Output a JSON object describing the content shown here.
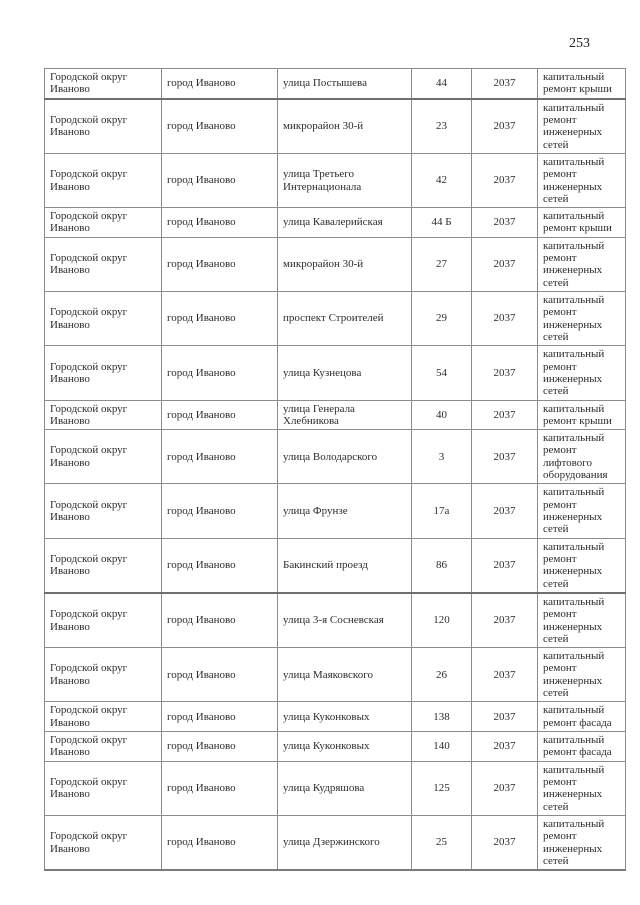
{
  "page": {
    "number": "253"
  },
  "table": {
    "rows": [
      {
        "municipality": "Городской округ Иваново",
        "city": "город Иваново",
        "street": "улица Постышева",
        "house": "44",
        "year": "2037",
        "work": "капитальный ремонт крыши"
      },
      {
        "municipality": "Городской округ Иваново",
        "city": "город Иваново",
        "street": "микрорайон 30-й",
        "house": "23",
        "year": "2037",
        "work": "капитальный ремонт инженерных сетей"
      },
      {
        "municipality": "Городской округ Иваново",
        "city": "город Иваново",
        "street": "улица Третьего Интернационала",
        "house": "42",
        "year": "2037",
        "work": "капитальный ремонт инженерных сетей"
      },
      {
        "municipality": "Городской округ Иваново",
        "city": "город Иваново",
        "street": "улица Кавалерийская",
        "house": "44 Б",
        "year": "2037",
        "work": "капитальный ремонт крыши"
      },
      {
        "municipality": "Городской округ Иваново",
        "city": "город Иваново",
        "street": "микрорайон 30-й",
        "house": "27",
        "year": "2037",
        "work": "капитальный ремонт инженерных сетей"
      },
      {
        "municipality": "Городской округ Иваново",
        "city": "город Иваново",
        "street": "проспект Строителей",
        "house": "29",
        "year": "2037",
        "work": "капитальный ремонт инженерных сетей"
      },
      {
        "municipality": "Городской округ Иваново",
        "city": "город Иваново",
        "street": "улица Кузнецова",
        "house": "54",
        "year": "2037",
        "work": "капитальный ремонт инженерных сетей"
      },
      {
        "municipality": "Городской округ Иваново",
        "city": "город Иваново",
        "street": "улица Генерала Хлебникова",
        "house": "40",
        "year": "2037",
        "work": "капитальный ремонт крыши"
      },
      {
        "municipality": "Городской округ Иваново",
        "city": "город Иваново",
        "street": "улица Володарского",
        "house": "3",
        "year": "2037",
        "work": "капитальный ремонт лифтового оборудования"
      },
      {
        "municipality": "Городской округ Иваново",
        "city": "город Иваново",
        "street": "улица Фрунзе",
        "house": "17а",
        "year": "2037",
        "work": "капитальный ремонт инженерных сетей"
      },
      {
        "municipality": "Городской округ Иваново",
        "city": "город Иваново",
        "street": "Бакинский проезд",
        "house": "86",
        "year": "2037",
        "work": "капитальный ремонт инженерных сетей"
      },
      {
        "municipality": "Городской округ Иваново",
        "city": "город Иваново",
        "street": "улица 3-я Сосневская",
        "house": "120",
        "year": "2037",
        "work": "капитальный ремонт инженерных сетей"
      },
      {
        "municipality": "Городской округ Иваново",
        "city": "город Иваново",
        "street": "улица Маяковского",
        "house": "26",
        "year": "2037",
        "work": "капитальный ремонт инженерных сетей"
      },
      {
        "municipality": "Городской округ Иваново",
        "city": "город Иваново",
        "street": "улица Куконковых",
        "house": "138",
        "year": "2037",
        "work": "капитальный ремонт фасада"
      },
      {
        "municipality": "Городской округ Иваново",
        "city": "город Иваново",
        "street": "улица Куконковых",
        "house": "140",
        "year": "2037",
        "work": "капитальный ремонт фасада"
      },
      {
        "municipality": "Городской округ Иваново",
        "city": "город Иваново",
        "street": "улица Кудряшова",
        "house": "125",
        "year": "2037",
        "work": "капитальный ремонт инженерных сетей"
      },
      {
        "municipality": "Городской округ Иваново",
        "city": "город Иваново",
        "street": "улица Дзержинского",
        "house": "25",
        "year": "2037",
        "work": "капитальный ремонт инженерных сетей"
      }
    ]
  }
}
